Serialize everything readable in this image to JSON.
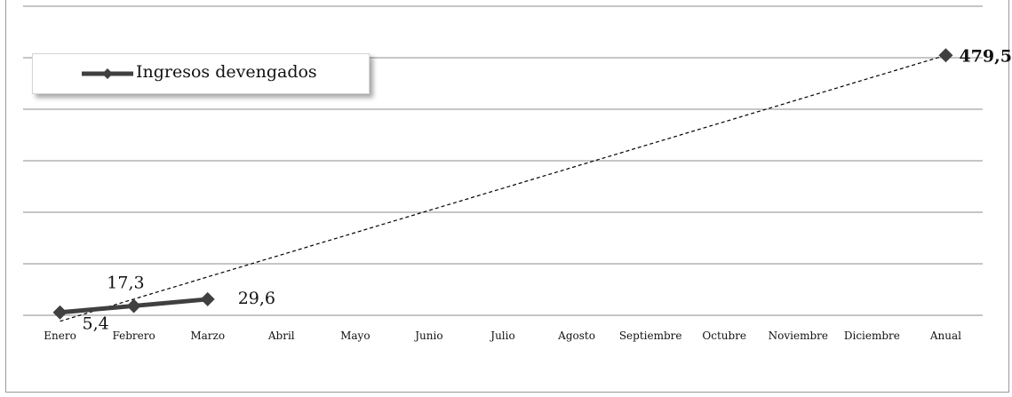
{
  "chart_data": {
    "type": "line",
    "categories": [
      "Enero",
      "Febrero",
      "Marzo",
      "Abril",
      "Mayo",
      "Junio",
      "Julio",
      "Agosto",
      "Septiembre",
      "Octubre",
      "Noviembre",
      "Diciembre",
      "Anual"
    ],
    "series": [
      {
        "name": "Ingresos devengados",
        "values": [
          5.4,
          17.3,
          29.6,
          null,
          null,
          null,
          null,
          null,
          null,
          null,
          null,
          null,
          479.5
        ],
        "labels": [
          "5,4",
          "17,3",
          "29,6",
          "",
          "",
          "",
          "",
          "",
          "",
          "",
          "",
          "",
          "479,5"
        ],
        "color": "#404040"
      }
    ],
    "trendline": {
      "from_category": "Enero",
      "to_category": "Anual",
      "style": "dashed",
      "color": "#000000"
    },
    "ylim": [
      0,
      570
    ],
    "grid": true,
    "legend_position": "top-left",
    "title": "",
    "xlabel": "",
    "ylabel": ""
  }
}
